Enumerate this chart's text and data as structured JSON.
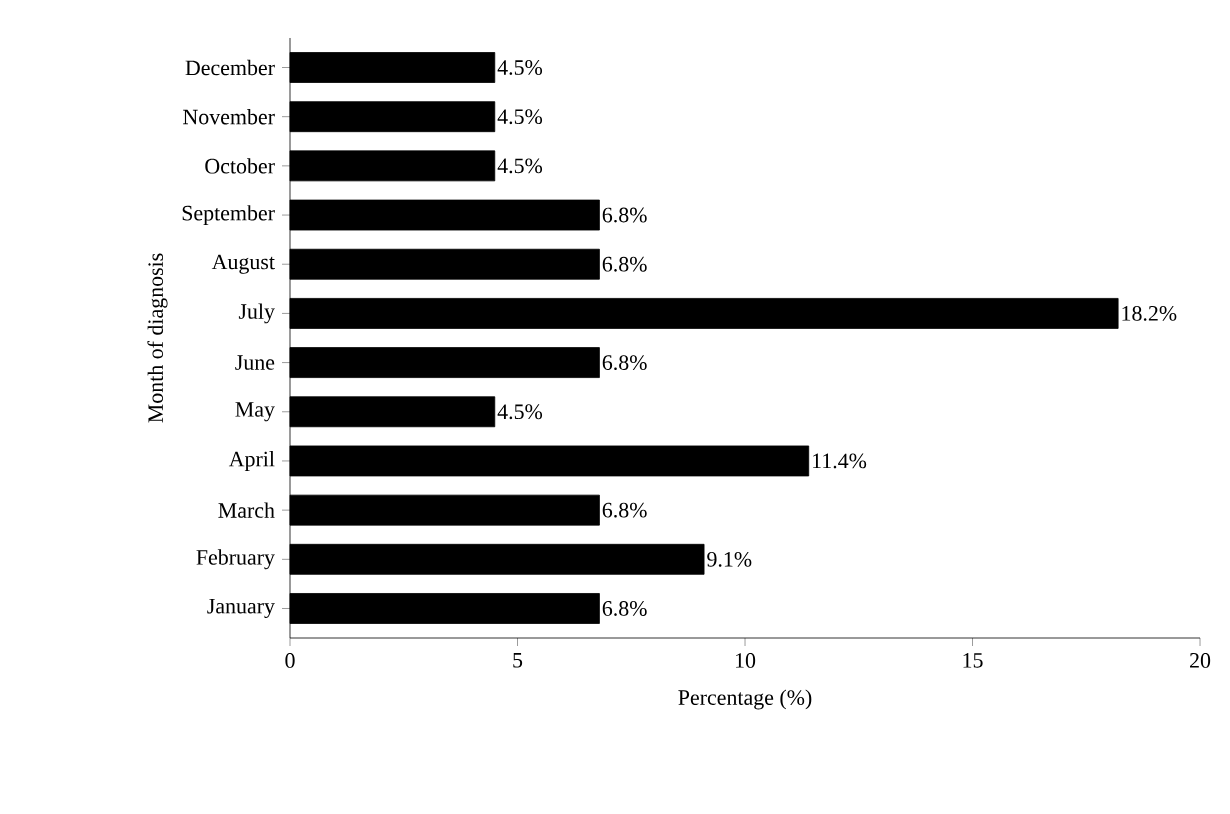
{
  "chart_data": {
    "type": "bar",
    "orientation": "horizontal",
    "xlabel": "Percentage (%)",
    "ylabel": "Month of diagnosis",
    "categories": [
      "December",
      "November",
      "October",
      "September",
      "August",
      "July",
      "June",
      "May",
      "April",
      "March",
      "February",
      "January"
    ],
    "values": [
      4.5,
      4.5,
      4.5,
      6.8,
      6.8,
      18.2,
      6.8,
      4.5,
      11.4,
      6.8,
      9.1,
      6.8
    ],
    "value_labels": [
      "4.5%",
      "4.5%",
      "4.5%",
      "6.8%",
      "6.8%",
      "18.2%",
      "6.8%",
      "4.5%",
      "11.4%",
      "6.8%",
      "9.1%",
      "6.8%"
    ],
    "color": "#000000",
    "xlim": [
      0,
      20
    ],
    "xticks": [
      0,
      5,
      10,
      15,
      20
    ]
  }
}
